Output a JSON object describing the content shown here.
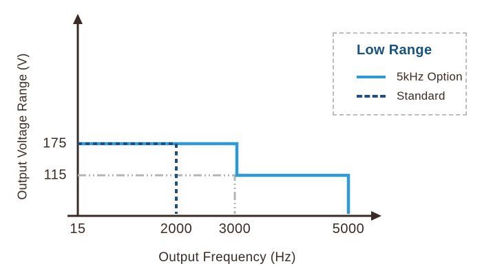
{
  "colors": {
    "axis_and_text": "#3A2B27",
    "option5k_blue": "#2E9BD6",
    "standard_navy": "#1E4F7D",
    "legend_title_blue": "#185380",
    "reference_gray": "#B4B4B4",
    "legend_border_gray": "#BCBCBC",
    "background": "#FFFFFF"
  },
  "chart_data": {
    "type": "line",
    "subtype": "step-schematic",
    "title": "",
    "xlabel": "Output Frequency (Hz)",
    "ylabel": "Output Voltage Range (V)",
    "x_ticks": [
      15,
      2000,
      3000,
      5000
    ],
    "y_ticks": [
      175,
      115
    ],
    "xlim": [
      15,
      5600
    ],
    "ylim": [
      0,
      230
    ],
    "grid": false,
    "series": [
      {
        "name": "5kHz Option",
        "style": "solid",
        "color": "#2E9BD6",
        "points": [
          [
            15,
            175
          ],
          [
            3000,
            175
          ],
          [
            3000,
            115
          ],
          [
            5000,
            115
          ],
          [
            5000,
            0
          ]
        ]
      },
      {
        "name": "Standard",
        "style": "dashed",
        "color": "#1E4F7D",
        "points": [
          [
            15,
            175
          ],
          [
            2000,
            175
          ],
          [
            2000,
            0
          ]
        ]
      }
    ],
    "reference_lines": [
      {
        "name": "115V-3000Hz-guide",
        "style": "dash-dot",
        "color": "#B4B4B4",
        "points": [
          [
            15,
            115
          ],
          [
            3000,
            115
          ],
          [
            3000,
            0
          ]
        ]
      }
    ],
    "legend": {
      "title": "Low Range",
      "position": "top-right",
      "border": "dashed",
      "entries": [
        {
          "label": "5kHz Option",
          "style": "solid",
          "color": "#2E9BD6"
        },
        {
          "label": "Standard",
          "style": "dashed",
          "color": "#1E4F7D"
        }
      ]
    }
  }
}
